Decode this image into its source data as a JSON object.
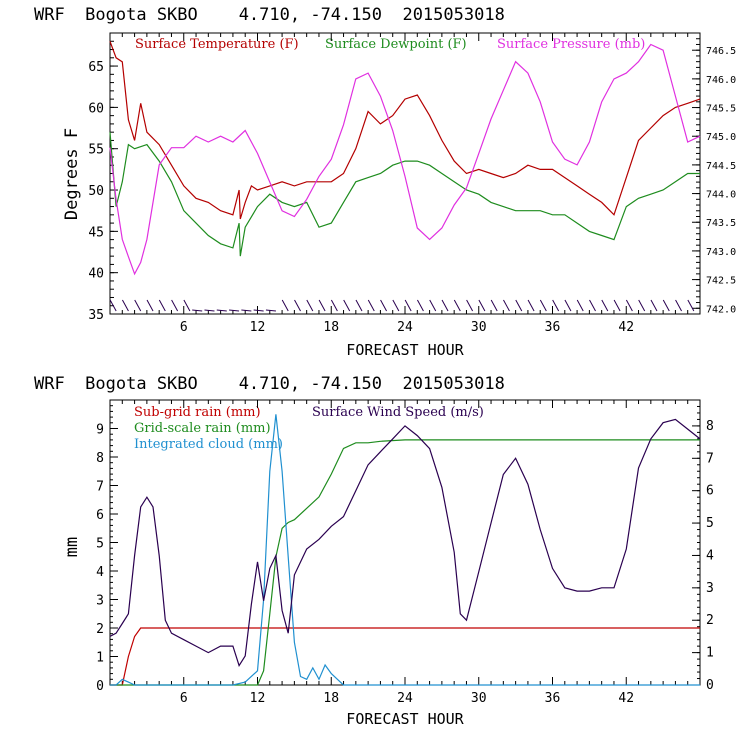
{
  "colors": {
    "temperature": "#b40000",
    "dewpoint": "#1e8c1e",
    "pressure": "#e030e0",
    "subgrid_rain": "#c00000",
    "gridscale_rain": "#1e8c1e",
    "cloud": "#2090d0",
    "wind": "#2a0050"
  },
  "chart_data": [
    {
      "type": "line",
      "title": "WRF  Bogota SKBO    4.710, -74.150  2015053018",
      "xlabel": "FORECAST HOUR",
      "ylabel": "Degrees F",
      "xlim": [
        0,
        48
      ],
      "ylim": [
        35,
        69
      ],
      "y2lim": [
        741.9,
        746.8
      ],
      "x_ticks": [
        6,
        12,
        18,
        24,
        30,
        36,
        42
      ],
      "y_ticks": [
        35,
        40,
        45,
        50,
        55,
        60,
        65
      ],
      "y2_ticks": [
        "742.0",
        "742.5",
        "743.0",
        "743.5",
        "744.0",
        "744.5",
        "745.0",
        "745.5",
        "746.0",
        "746.5"
      ],
      "legend_position": "top",
      "series": [
        {
          "name": "Surface Temperature (F)",
          "axis": "left",
          "x": [
            0,
            0.5,
            1,
            1.5,
            2,
            2.5,
            3,
            4,
            5,
            6,
            7,
            8,
            9,
            10,
            10.5,
            10.6,
            11,
            11.5,
            12,
            13,
            14,
            15,
            16,
            17,
            18,
            19,
            20,
            21,
            22,
            23,
            24,
            25,
            26,
            27,
            28,
            29,
            30,
            31,
            32,
            33,
            34,
            35,
            36,
            37,
            38,
            39,
            40,
            41,
            42,
            43,
            44,
            45,
            46,
            47,
            48
          ],
          "y": [
            68,
            66,
            65.5,
            58.5,
            56,
            60.5,
            57,
            55.5,
            53,
            50.5,
            49,
            48.5,
            47.5,
            47,
            50,
            46.5,
            48.5,
            50.5,
            50,
            50.5,
            51,
            50.5,
            51,
            51,
            51,
            52,
            55,
            59.5,
            58,
            59,
            61,
            61.5,
            59,
            56,
            53.5,
            52,
            52.5,
            52,
            51.5,
            52,
            53,
            52.5,
            52.5,
            51.5,
            50.5,
            49.5,
            48.5,
            47,
            51.5,
            56,
            57.5,
            59,
            60,
            60.5,
            61
          ]
        },
        {
          "name": "Surface Dewpoint (F)",
          "axis": "left",
          "x": [
            0,
            0.5,
            1,
            1.5,
            2,
            3,
            4,
            5,
            6,
            7,
            8,
            9,
            10,
            10.5,
            10.6,
            11,
            12,
            13,
            14,
            15,
            16,
            17,
            18,
            19,
            20,
            21,
            22,
            23,
            24,
            25,
            26,
            27,
            28,
            29,
            30,
            31,
            32,
            33,
            34,
            35,
            36,
            37,
            38,
            39,
            40,
            41,
            42,
            43,
            44,
            45,
            46,
            47,
            48
          ],
          "y": [
            57,
            48,
            51,
            55.5,
            55,
            55.5,
            53.5,
            51,
            47.5,
            46,
            44.5,
            43.5,
            43,
            46,
            42,
            45.5,
            48,
            49.5,
            48.5,
            48,
            48.5,
            45.5,
            46,
            48.5,
            51,
            51.5,
            52,
            53,
            53.5,
            53.5,
            53,
            52,
            51,
            50,
            49.5,
            48.5,
            48,
            47.5,
            47.5,
            47.5,
            47,
            47,
            46,
            45,
            44.5,
            44,
            48,
            49,
            49.5,
            50,
            51,
            52,
            52
          ]
        },
        {
          "name": "Surface Pressure (mb)",
          "axis": "right",
          "x": [
            0,
            0.5,
            1,
            1.5,
            2,
            2.5,
            3,
            4,
            5,
            6,
            7,
            8,
            9,
            10,
            11,
            12,
            13,
            14,
            15,
            16,
            17,
            18,
            19,
            20,
            21,
            22,
            23,
            24,
            25,
            26,
            27,
            28,
            29,
            30,
            31,
            32,
            33,
            34,
            35,
            36,
            37,
            38,
            39,
            40,
            41,
            42,
            43,
            44,
            45,
            46,
            47,
            48
          ],
          "y": [
            744.8,
            743.9,
            743.2,
            742.9,
            742.6,
            742.8,
            743.2,
            744.5,
            744.8,
            744.8,
            745,
            744.9,
            745,
            744.9,
            745.1,
            744.7,
            744.2,
            743.7,
            743.6,
            743.9,
            744.3,
            744.6,
            745.2,
            746,
            746.1,
            745.7,
            745.1,
            744.3,
            743.4,
            743.2,
            743.4,
            743.8,
            744.1,
            744.7,
            745.3,
            745.8,
            746.3,
            746.1,
            745.6,
            744.9,
            744.6,
            744.5,
            744.9,
            745.6,
            746,
            746.1,
            746.3,
            746.6,
            746.5,
            745.7,
            744.9,
            745
          ]
        }
      ],
      "wind_barbs_label": "wind barbs along bottom"
    },
    {
      "type": "line",
      "title": "WRF  Bogota SKBO    4.710, -74.150  2015053018",
      "xlabel": "FORECAST HOUR",
      "ylabel": "mm",
      "xlim": [
        0,
        48
      ],
      "ylim": [
        0,
        10
      ],
      "y2lim": [
        0,
        8.8
      ],
      "x_ticks": [
        6,
        12,
        18,
        24,
        30,
        36,
        42
      ],
      "y_ticks": [
        0,
        1,
        2,
        3,
        4,
        5,
        6,
        7,
        8,
        9
      ],
      "y2_ticks": [
        0,
        1,
        2,
        3,
        4,
        5,
        6,
        7,
        8
      ],
      "legend_position": "top-left",
      "series": [
        {
          "name": "Sub-grid rain (mm)",
          "axis": "left",
          "x": [
            0,
            1,
            1.5,
            2,
            2.5,
            48
          ],
          "y": [
            0,
            0,
            1,
            1.7,
            2,
            2
          ]
        },
        {
          "name": "Grid-scale rain (mm)",
          "axis": "left",
          "x": [
            0,
            12,
            12.5,
            13,
            13.5,
            14,
            14.5,
            15,
            16,
            17,
            18,
            19,
            20,
            21,
            22,
            24,
            30,
            36,
            42,
            48
          ],
          "y": [
            0,
            0,
            0.5,
            2.5,
            4.5,
            5.5,
            5.7,
            5.8,
            6.2,
            6.6,
            7.4,
            8.3,
            8.5,
            8.5,
            8.55,
            8.6,
            8.6,
            8.6,
            8.6,
            8.6
          ]
        },
        {
          "name": "Integrated cloud (mm)",
          "axis": "left",
          "x": [
            0,
            0.5,
            1,
            1.5,
            2,
            10,
            11,
            12,
            12.5,
            13,
            13.5,
            14,
            14.5,
            15,
            15.5,
            16,
            16.5,
            17,
            17.5,
            18,
            18.5,
            19,
            48
          ],
          "y": [
            0,
            0,
            0.2,
            0.1,
            0,
            0,
            0.1,
            0.5,
            3,
            7.5,
            9.5,
            7.5,
            4.5,
            1.5,
            0.3,
            0.2,
            0.6,
            0.2,
            0.7,
            0.4,
            0.2,
            0,
            0
          ]
        },
        {
          "name": "Surface Wind Speed (m/s)",
          "axis": "right",
          "x": [
            0,
            0.5,
            1,
            1.5,
            2,
            2.5,
            3,
            3.5,
            4,
            4.5,
            5,
            6,
            7,
            8,
            9,
            10,
            10.5,
            11,
            11.5,
            12,
            12.5,
            13,
            13.5,
            14,
            14.5,
            15,
            16,
            17,
            18,
            19,
            20,
            21,
            22,
            23,
            24,
            25,
            26,
            27,
            28,
            28.5,
            29,
            30,
            31,
            32,
            33,
            34,
            35,
            36,
            37,
            38,
            39,
            40,
            41,
            42,
            43,
            44,
            45,
            46,
            47,
            48
          ],
          "y": [
            1.5,
            1.6,
            1.9,
            2.2,
            4,
            5.5,
            5.8,
            5.5,
            4,
            2,
            1.6,
            1.4,
            1.2,
            1,
            1.2,
            1.2,
            0.6,
            0.9,
            2.5,
            3.8,
            2.6,
            3.6,
            4,
            2.3,
            1.6,
            3.4,
            4.2,
            4.5,
            4.9,
            5.2,
            6,
            6.8,
            7.2,
            7.6,
            8,
            7.7,
            7.3,
            6.1,
            4.1,
            2.2,
            2,
            3.5,
            5,
            6.5,
            7,
            6.2,
            4.8,
            3.6,
            3,
            2.9,
            2.9,
            3,
            3,
            4.2,
            6.7,
            7.6,
            8.1,
            8.2,
            7.9,
            7.6
          ]
        }
      ]
    }
  ]
}
